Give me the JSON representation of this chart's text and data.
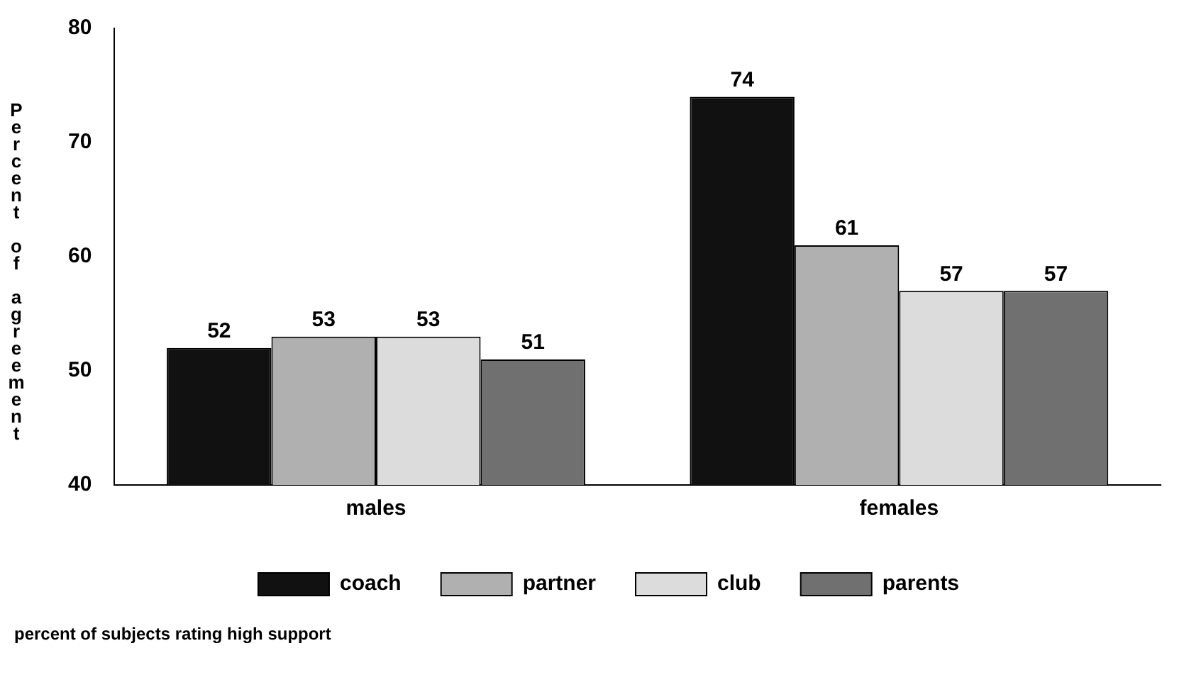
{
  "chart_data": {
    "type": "bar",
    "ylabel": "Percent of agreement",
    "categories": [
      "males",
      "females"
    ],
    "series": [
      {
        "name": "coach",
        "color": "#111111",
        "values": [
          52,
          74
        ]
      },
      {
        "name": "partner",
        "color": "#b0b0b0",
        "values": [
          53,
          61
        ]
      },
      {
        "name": "club",
        "color": "#dcdcdc",
        "values": [
          53,
          57
        ]
      },
      {
        "name": "parents",
        "color": "#707070",
        "values": [
          51,
          57
        ]
      }
    ],
    "ylim": [
      40,
      80
    ],
    "yticks": [
      40,
      50,
      60,
      70,
      80
    ],
    "grid": false,
    "legend": "bottom",
    "data_labels": true,
    "annotations": [
      "percent of subjects rating high support"
    ]
  }
}
